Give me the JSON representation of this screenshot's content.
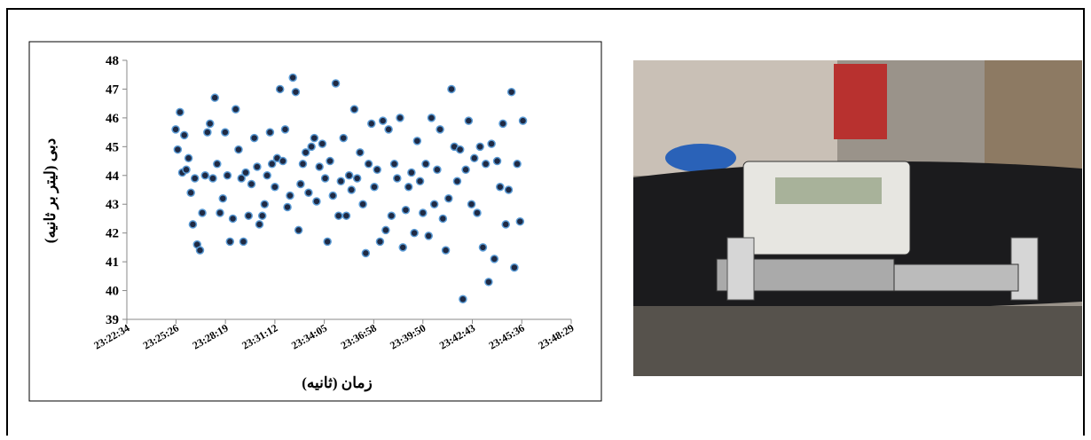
{
  "chart_data": {
    "type": "scatter",
    "x_label": "زمان (ثانیه)",
    "y_label": "دبی (لیتر بر ثانیه)",
    "color": "#1f2a44",
    "edge_color": "#5b9bd5",
    "xlim": [
      84154,
      85709
    ],
    "xticks": [
      {
        "value": 84154,
        "label": "23:22:34"
      },
      {
        "value": 84326,
        "label": "23:25:26"
      },
      {
        "value": 84499,
        "label": "23:28:19"
      },
      {
        "value": 84672,
        "label": "23:31:12"
      },
      {
        "value": 84845,
        "label": "23:34:05"
      },
      {
        "value": 85018,
        "label": "23:36:58"
      },
      {
        "value": 85190,
        "label": "23:39:50"
      },
      {
        "value": 85363,
        "label": "23:42:43"
      },
      {
        "value": 85536,
        "label": "23:45:36"
      },
      {
        "value": 85709,
        "label": "23:48:29"
      }
    ],
    "ylim": [
      39,
      48
    ],
    "yticks": [
      39,
      40,
      41,
      42,
      43,
      44,
      45,
      46,
      47,
      48
    ],
    "x": [
      84325,
      84332,
      84340,
      84348,
      84355,
      84362,
      84370,
      84378,
      84385,
      84392,
      84400,
      84410,
      84418,
      84428,
      84436,
      84445,
      84455,
      84462,
      84470,
      84480,
      84490,
      84498,
      84506,
      84515,
      84525,
      84535,
      84545,
      84555,
      84562,
      84570,
      84580,
      84590,
      84600,
      84610,
      84618,
      84628,
      84636,
      84645,
      84655,
      84662,
      84672,
      84680,
      84690,
      84700,
      84708,
      84716,
      84725,
      84735,
      84745,
      84755,
      84762,
      84770,
      84780,
      84790,
      84800,
      84810,
      84818,
      84828,
      84838,
      84848,
      84856,
      84865,
      84875,
      84885,
      84895,
      84903,
      84912,
      84922,
      84932,
      84940,
      84950,
      84960,
      84970,
      84980,
      84990,
      85000,
      85010,
      85020,
      85030,
      85040,
      85050,
      85060,
      85070,
      85080,
      85090,
      85100,
      85110,
      85120,
      85130,
      85140,
      85150,
      85160,
      85170,
      85180,
      85190,
      85200,
      85210,
      85220,
      85230,
      85240,
      85250,
      85260,
      85270,
      85280,
      85290,
      85300,
      85310,
      85320,
      85330,
      85340,
      85350,
      85360,
      85370,
      85380,
      85390,
      85400,
      85410,
      85420,
      85430,
      85440,
      85450,
      85460,
      85470,
      85480,
      85490,
      85500,
      85510,
      85520,
      85530,
      85540
    ],
    "values": [
      45.6,
      44.9,
      46.2,
      44.1,
      45.4,
      44.2,
      44.6,
      43.4,
      42.3,
      43.9,
      41.6,
      41.4,
      42.7,
      44.0,
      45.5,
      45.8,
      43.9,
      46.7,
      44.4,
      42.7,
      43.2,
      45.5,
      44.0,
      41.7,
      42.5,
      46.3,
      44.9,
      43.9,
      41.7,
      44.1,
      42.6,
      43.7,
      45.3,
      44.3,
      42.3,
      42.6,
      43.0,
      44.0,
      45.5,
      44.4,
      43.6,
      44.6,
      47.0,
      44.5,
      45.6,
      42.9,
      43.3,
      47.4,
      46.9,
      42.1,
      43.7,
      44.4,
      44.8,
      43.4,
      45.0,
      45.3,
      43.1,
      44.3,
      45.1,
      43.9,
      41.7,
      44.5,
      43.3,
      47.2,
      42.6,
      43.8,
      45.3,
      42.6,
      44.0,
      43.5,
      46.3,
      43.9,
      44.8,
      43.0,
      41.3,
      44.4,
      45.8,
      43.6,
      44.2,
      41.7,
      45.9,
      42.1,
      45.6,
      42.6,
      44.4,
      43.9,
      46.0,
      41.5,
      42.8,
      43.6,
      44.1,
      42.0,
      45.2,
      43.8,
      42.7,
      44.4,
      41.9,
      46.0,
      43.0,
      44.2,
      45.6,
      42.5,
      41.4,
      43.2,
      47.0,
      45.0,
      43.8,
      44.9,
      39.7,
      44.2,
      45.9,
      43.0,
      44.6,
      42.7,
      45.0,
      41.5,
      44.4,
      40.3,
      45.1,
      41.1,
      44.5,
      43.6,
      45.8,
      42.3,
      43.5,
      46.9,
      40.8,
      44.4,
      42.4,
      45.9
    ]
  }
}
